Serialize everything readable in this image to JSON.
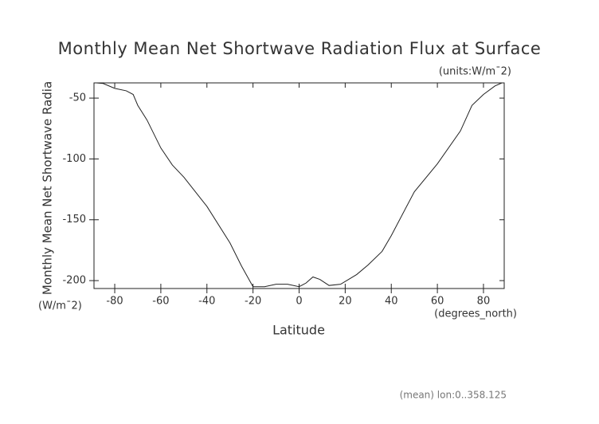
{
  "chart_data": {
    "type": "line",
    "title": "Monthly Mean Net Shortwave Radiation Flux at Surface",
    "units": "(units:W/m¯2)",
    "y_label": "Monthly Mean Net Shortwave Radia",
    "y_units": "(W/m¯2)",
    "x_label": "Latitude",
    "x_units": "(degrees_north)",
    "footnote": "(mean) lon:0..358.125",
    "x": [
      -88,
      -85,
      -80,
      -75,
      -72,
      -70,
      -66,
      -60,
      -55,
      -50,
      -40,
      -30,
      -25,
      -20,
      -15,
      -10,
      -5,
      0,
      3,
      6,
      9,
      13,
      18,
      25,
      30,
      36,
      40,
      50,
      60,
      70,
      75,
      80,
      85,
      88
    ],
    "series": [
      {
        "color": "#222222",
        "values": [
          -37.5,
          -38,
          -42,
          -44,
          -47,
          -56,
          -68,
          -91,
          -105,
          -115,
          -139,
          -169,
          -188,
          -205,
          -205,
          -203,
          -203,
          -205,
          -202,
          -197,
          -199,
          -204,
          -203,
          -195,
          -187,
          -176,
          -163,
          -127,
          -104,
          -77,
          -56,
          -47,
          -40,
          -37.5
        ]
      }
    ],
    "xlim": [
      -89,
      89
    ],
    "xticks": [
      -80,
      -60,
      -40,
      -20,
      0,
      20,
      40,
      60,
      80
    ],
    "ylim": [
      -206.5,
      -37.5
    ],
    "yticks": [
      -50,
      -100,
      -150,
      -200
    ]
  }
}
